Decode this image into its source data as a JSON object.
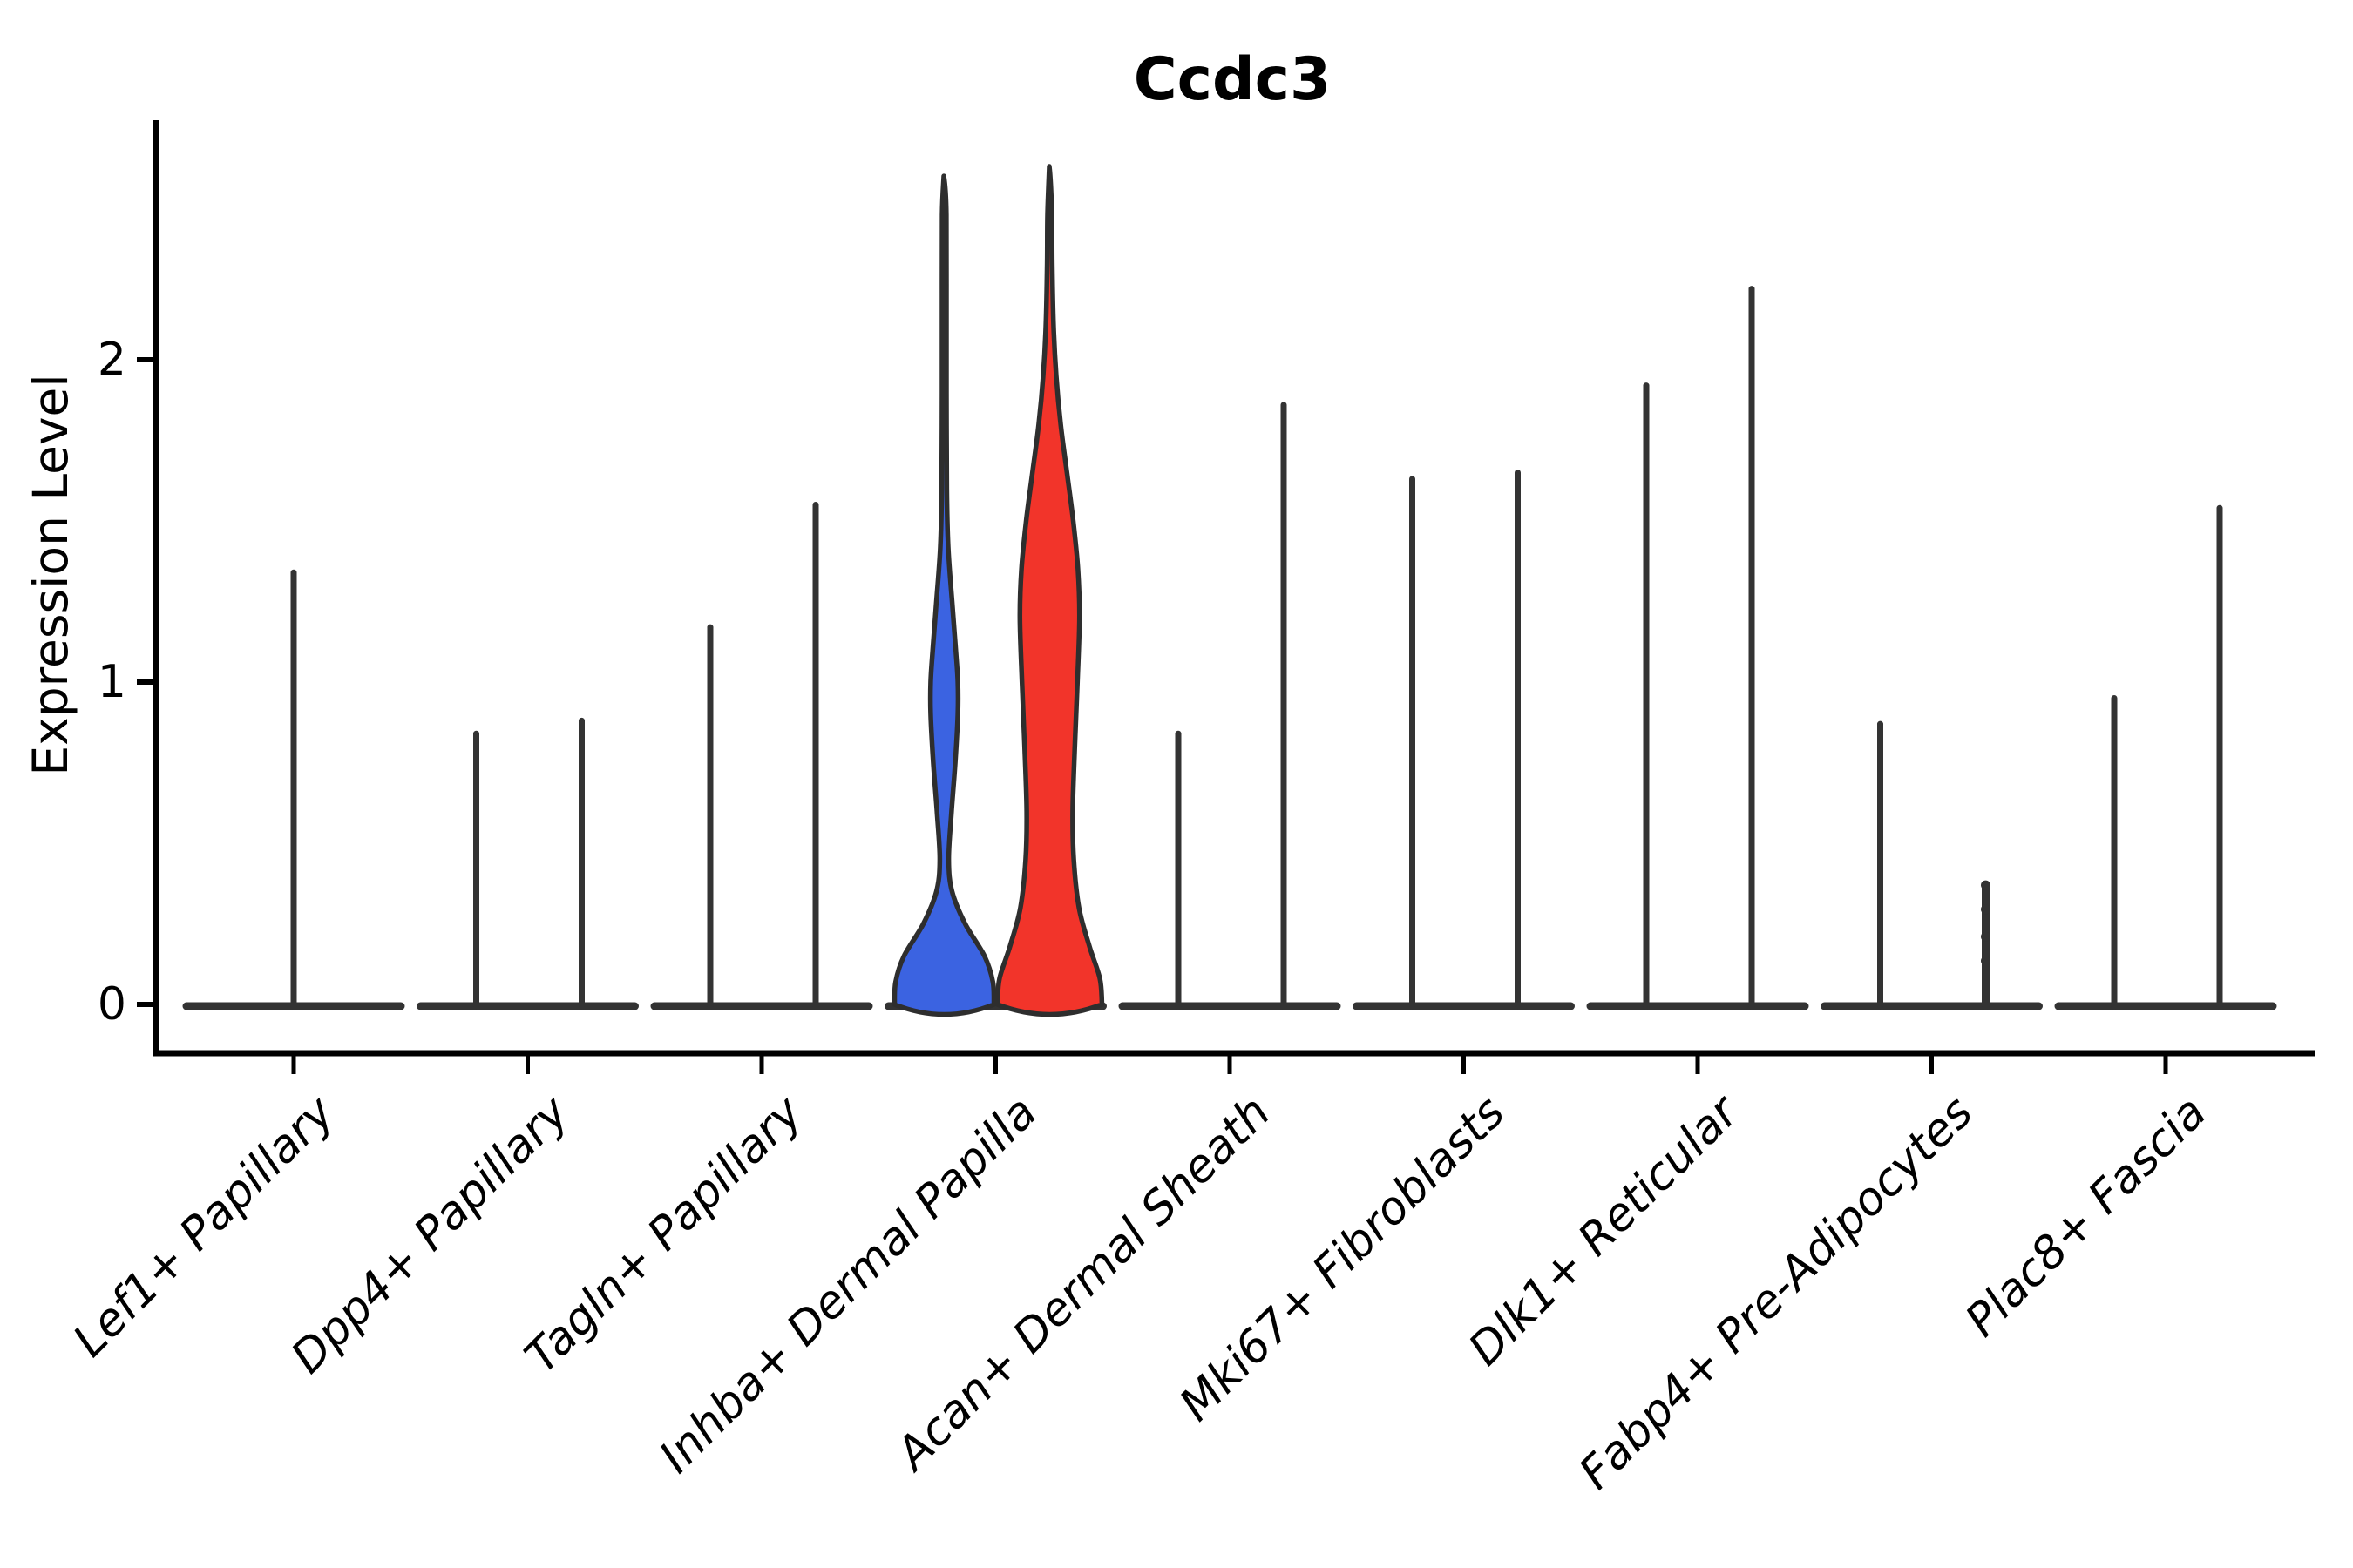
{
  "title": "Ccdc3",
  "axes": {
    "ylabel": "Expression Level",
    "xlabel": "",
    "yticks": [
      0,
      1,
      2
    ],
    "ylim": [
      0,
      2.74
    ]
  },
  "colors": {
    "group1_fill": "#3B63E1",
    "group2_fill": "#F2342A",
    "violin_outline": "#2E2E2E",
    "spike_line": "#333333",
    "axis": "#000000",
    "background": "#ffffff"
  },
  "chart_data": {
    "type": "violin",
    "title": "Ccdc3",
    "ylabel": "Expression Level",
    "xlabel": "",
    "ylim": [
      0,
      2.74
    ],
    "yticks": [
      0,
      1,
      2
    ],
    "legend": "none",
    "grid": false,
    "categories": [
      "Lef1+ Papillary",
      "Dpp4+ Papillary",
      "Tagln+ Papillary",
      "Inhba+ Dermal Papilla",
      "Acan+ Dermal Sheath",
      "Mki67+ Fibroblasts",
      "Dlk1+ Reticular",
      "Fabp4+ Pre-Adipocytes",
      "Plac8+ Fascia"
    ],
    "groups_per_category": 2,
    "violins": [
      {
        "category": "Lef1+ Papillary",
        "items": [
          {
            "side": "center",
            "kind": "spike",
            "max": 1.34
          }
        ]
      },
      {
        "category": "Dpp4+ Papillary",
        "items": [
          {
            "side": "left",
            "kind": "spike",
            "max": 0.84
          },
          {
            "side": "right",
            "kind": "spike",
            "max": 0.88
          }
        ]
      },
      {
        "category": "Tagln+ Papillary",
        "items": [
          {
            "side": "left",
            "kind": "spike",
            "max": 1.17
          },
          {
            "side": "right",
            "kind": "spike",
            "max": 1.55
          }
        ]
      },
      {
        "category": "Inhba+ Dermal Papilla",
        "items": [
          {
            "side": "left",
            "kind": "violin",
            "group": "group1",
            "max": 2.57,
            "profile": [
              [
                0.0,
                0.95
              ],
              [
                0.07,
                0.93
              ],
              [
                0.15,
                0.77
              ],
              [
                0.25,
                0.4
              ],
              [
                0.35,
                0.15
              ],
              [
                0.45,
                0.085
              ],
              [
                0.6,
                0.14
              ],
              [
                0.75,
                0.21
              ],
              [
                0.9,
                0.26
              ],
              [
                1.0,
                0.26
              ],
              [
                1.1,
                0.22
              ],
              [
                1.25,
                0.15
              ],
              [
                1.42,
                0.075
              ],
              [
                1.6,
                0.048
              ],
              [
                1.9,
                0.042
              ],
              [
                2.2,
                0.042
              ],
              [
                2.45,
                0.04
              ],
              [
                2.57,
                0.008
              ]
            ]
          },
          {
            "side": "right",
            "kind": "violin",
            "group": "group2",
            "max": 2.6,
            "profile": [
              [
                0.0,
                1.0
              ],
              [
                0.08,
                0.96
              ],
              [
                0.18,
                0.76
              ],
              [
                0.3,
                0.56
              ],
              [
                0.45,
                0.46
              ],
              [
                0.6,
                0.44
              ],
              [
                0.8,
                0.48
              ],
              [
                1.0,
                0.53
              ],
              [
                1.2,
                0.57
              ],
              [
                1.35,
                0.54
              ],
              [
                1.5,
                0.45
              ],
              [
                1.65,
                0.33
              ],
              [
                1.8,
                0.21
              ],
              [
                1.95,
                0.125
              ],
              [
                2.1,
                0.075
              ],
              [
                2.3,
                0.048
              ],
              [
                2.45,
                0.042
              ],
              [
                2.6,
                0.008
              ]
            ]
          }
        ]
      },
      {
        "category": "Acan+ Dermal Sheath",
        "items": [
          {
            "side": "left",
            "kind": "spike",
            "max": 0.84
          },
          {
            "side": "right",
            "kind": "spike",
            "max": 1.86
          }
        ]
      },
      {
        "category": "Mki67+ Fibroblasts",
        "items": [
          {
            "side": "left",
            "kind": "spike",
            "max": 1.63
          },
          {
            "side": "right",
            "kind": "spike",
            "max": 1.65
          }
        ]
      },
      {
        "category": "Dlk1+ Reticular",
        "items": [
          {
            "side": "left",
            "kind": "spike",
            "max": 1.92
          },
          {
            "side": "right",
            "kind": "spike",
            "max": 2.22
          }
        ]
      },
      {
        "category": "Fabp4+ Pre-Adipocytes",
        "items": [
          {
            "side": "left",
            "kind": "spike",
            "max": 0.87
          },
          {
            "side": "right",
            "kind": "spike",
            "max": 0.37,
            "thick": true,
            "dots": [
              0.37,
              0.295,
              0.21,
              0.135
            ]
          }
        ]
      },
      {
        "category": "Plac8+ Fascia",
        "items": [
          {
            "side": "left",
            "kind": "spike",
            "max": 0.95
          },
          {
            "side": "right",
            "kind": "spike",
            "max": 1.54
          }
        ]
      }
    ]
  }
}
